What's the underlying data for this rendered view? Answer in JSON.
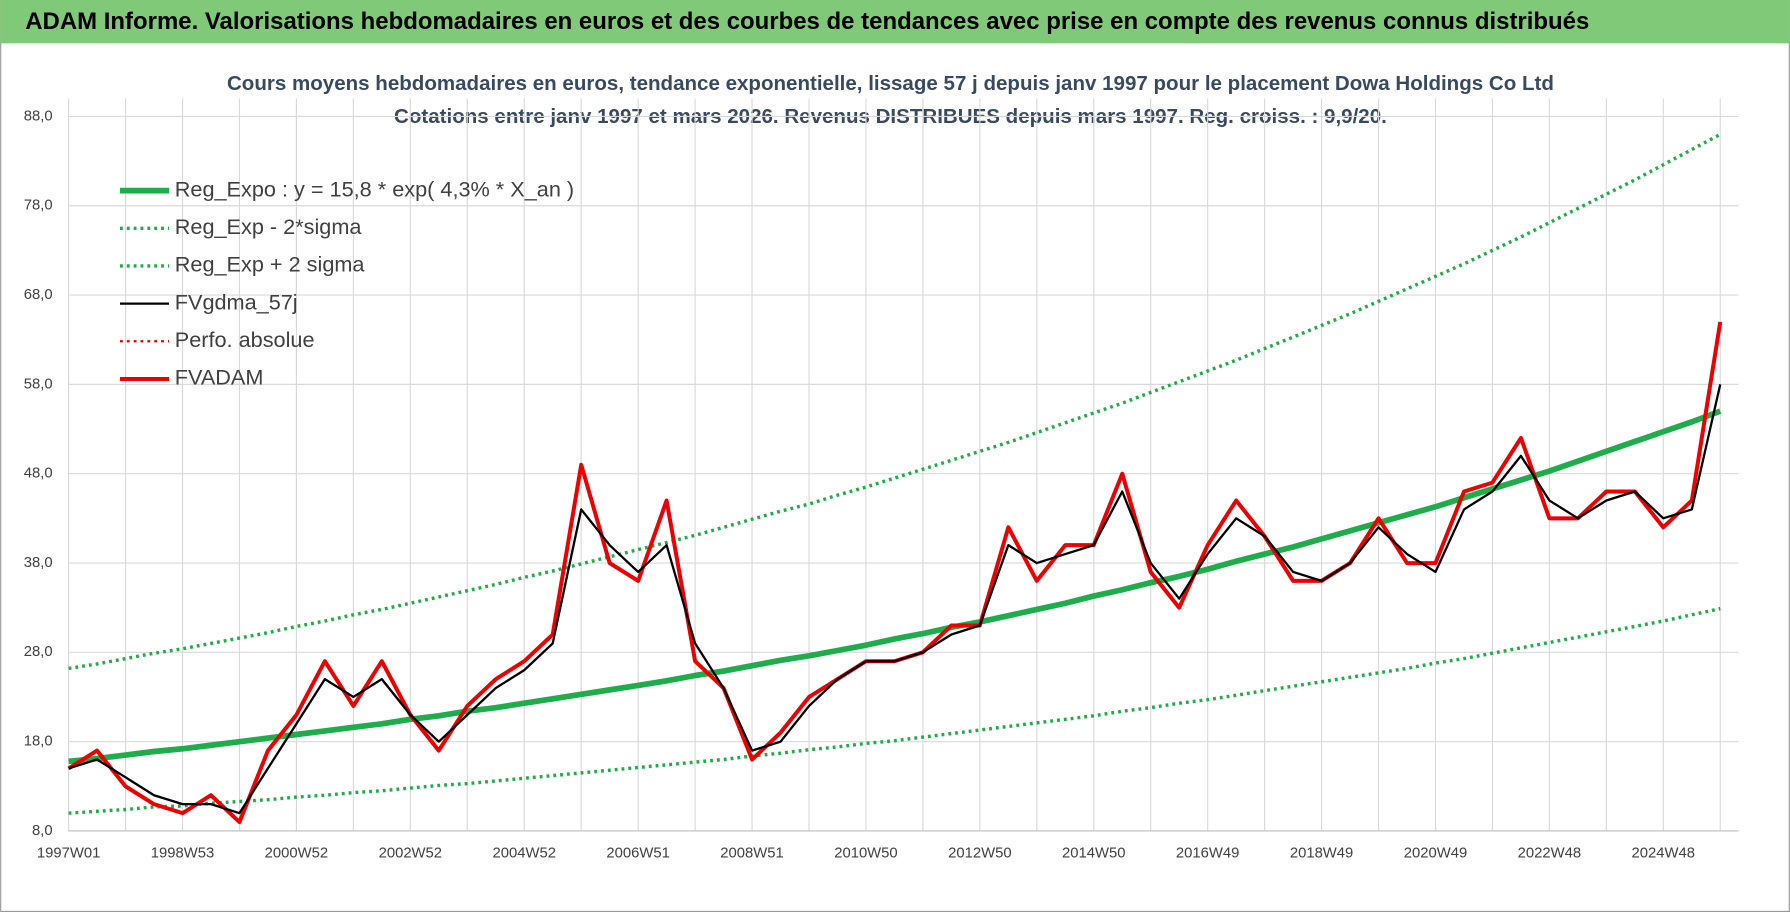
{
  "header": {
    "title": "ADAM Informe. Valorisations hebdomadaires en euros et des courbes de tendances avec prise en compte des revenus connus distribués"
  },
  "chart_data": {
    "type": "line",
    "title": "Cours moyens hebdomadaires en euros, tendance exponentielle, lissage 57 j depuis janv 1997  pour le placement Dowa Holdings Co Ltd",
    "subtitle": "Cotations entre janv 1997 et mars 2026. Revenus DISTRIBUES depuis mars 1997.  Reg. croiss. : 9,9/20.",
    "categories": [
      "1997W01",
      null,
      null,
      null,
      "1998W53",
      null,
      null,
      null,
      "2000W52",
      null,
      null,
      null,
      "2002W52",
      null,
      null,
      null,
      "2004W52",
      null,
      null,
      null,
      "2006W51",
      null,
      null,
      null,
      "2008W51",
      null,
      null,
      null,
      "2010W50",
      null,
      null,
      null,
      "2012W50",
      null,
      null,
      null,
      "2014W50",
      null,
      null,
      null,
      "2016W49",
      null,
      null,
      null,
      "2018W49",
      null,
      null,
      null,
      "2020W49",
      null,
      null,
      null,
      "2022W48",
      null,
      null,
      null,
      "2024W48",
      null,
      null
    ],
    "ylim": [
      8,
      90
    ],
    "yticks": [
      {
        "value": 8,
        "label": "8,0"
      },
      {
        "value": 18,
        "label": "18,0"
      },
      {
        "value": 28,
        "label": "28,0"
      },
      {
        "value": 38,
        "label": "38,0"
      },
      {
        "value": 48,
        "label": "48,0"
      },
      {
        "value": 58,
        "label": "58,0"
      },
      {
        "value": 68,
        "label": "68,0"
      },
      {
        "value": 78,
        "label": "78,0"
      },
      {
        "value": 88,
        "label": "88,0"
      }
    ],
    "grid": true,
    "legend": "top-left",
    "series": [
      {
        "name": "Reg_Expo : y = 15,8 * exp( 4,3% *  X_an )",
        "color": "#1fad4b",
        "line_style": "solid",
        "values": [
          15.8,
          16.1,
          16.5,
          16.9,
          17.2,
          17.6,
          18.0,
          18.4,
          18.8,
          19.2,
          19.6,
          20.0,
          20.5,
          20.9,
          21.4,
          21.8,
          22.3,
          22.8,
          23.3,
          23.8,
          24.3,
          24.8,
          25.4,
          25.9,
          26.5,
          27.1,
          27.6,
          28.2,
          28.8,
          29.5,
          30.1,
          30.8,
          31.4,
          32.1,
          32.8,
          33.5,
          34.3,
          35.0,
          35.8,
          36.5,
          37.3,
          38.2,
          39.0,
          39.8,
          40.7,
          41.6,
          42.5,
          43.4,
          44.3,
          45.3,
          46.3,
          47.3,
          48.3,
          49.4,
          50.5,
          51.6,
          52.7,
          53.8,
          55.0
        ]
      },
      {
        "name": "Reg_Exp - 2*sigma",
        "color": "#1fad4b",
        "line_style": "dotted",
        "values": [
          10.0,
          10.2,
          10.4,
          10.7,
          10.8,
          11.1,
          11.3,
          11.5,
          11.8,
          12.0,
          12.3,
          12.5,
          12.8,
          13.1,
          13.3,
          13.6,
          13.9,
          14.2,
          14.5,
          14.8,
          15.1,
          15.4,
          15.7,
          16.0,
          16.4,
          16.7,
          17.1,
          17.4,
          17.8,
          18.1,
          18.5,
          18.9,
          19.3,
          19.7,
          20.1,
          20.5,
          20.9,
          21.4,
          21.8,
          22.3,
          22.7,
          23.2,
          23.7,
          24.2,
          24.7,
          25.2,
          25.7,
          26.2,
          26.8,
          27.3,
          27.9,
          28.5,
          29.1,
          29.7,
          30.3,
          30.9,
          31.5,
          32.2,
          32.9
        ]
      },
      {
        "name": "Reg_Exp + 2 sigma",
        "color": "#1fad4b",
        "line_style": "dotted",
        "values": [
          26.2,
          26.7,
          27.3,
          27.9,
          28.4,
          29.0,
          29.6,
          30.2,
          30.9,
          31.5,
          32.2,
          32.8,
          33.5,
          34.2,
          34.9,
          35.6,
          36.4,
          37.1,
          37.9,
          38.7,
          39.5,
          40.3,
          41.1,
          42.0,
          42.9,
          43.8,
          44.6,
          45.6,
          46.5,
          47.5,
          48.5,
          49.5,
          50.5,
          51.5,
          52.6,
          53.7,
          54.8,
          55.9,
          57.1,
          58.3,
          59.5,
          60.7,
          62.0,
          63.3,
          64.6,
          65.9,
          67.3,
          68.7,
          70.1,
          71.5,
          73.0,
          74.5,
          76.1,
          77.7,
          79.3,
          80.9,
          82.6,
          84.3,
          86.0
        ]
      },
      {
        "name": "FVgdma_57j",
        "color": "#000000",
        "line_style": "solid",
        "values": [
          15,
          16,
          14,
          12,
          11,
          11,
          10,
          15,
          20,
          25,
          23,
          25,
          21,
          18,
          21,
          24,
          26,
          29,
          44,
          40,
          37,
          40,
          29,
          24,
          17,
          18,
          22,
          25,
          27,
          27,
          28,
          30,
          31,
          40,
          38,
          39,
          40,
          46,
          38,
          34,
          39,
          43,
          41,
          37,
          36,
          38,
          42,
          39,
          37,
          44,
          46,
          50,
          45,
          43,
          45,
          46,
          43,
          44,
          58
        ]
      },
      {
        "name": "Perfo. absolue",
        "color": "#e00000",
        "line_style": "dotted",
        "values": [
          null,
          null,
          null,
          null,
          null,
          null,
          null,
          null,
          null,
          null,
          null,
          null,
          null,
          null,
          null,
          null,
          null,
          null,
          null,
          null,
          null,
          null,
          null,
          null,
          null,
          null,
          null,
          null,
          null,
          null,
          null,
          null,
          null,
          null,
          null,
          null,
          null,
          null,
          null,
          null,
          null,
          null,
          null,
          null,
          null,
          null,
          null,
          null,
          null,
          null,
          null,
          null,
          null,
          null,
          null,
          null,
          null,
          null,
          null
        ]
      },
      {
        "name": "FVADAM",
        "color": "#ee0000",
        "line_style": "solid",
        "values": [
          15,
          17,
          13,
          11,
          10,
          12,
          9,
          17,
          21,
          27,
          22,
          27,
          21,
          17,
          22,
          25,
          27,
          30,
          49,
          38,
          36,
          45,
          27,
          24,
          16,
          19,
          23,
          25,
          27,
          27,
          28,
          31,
          31,
          42,
          36,
          40,
          40,
          48,
          37,
          33,
          40,
          45,
          41,
          36,
          36,
          38,
          43,
          38,
          38,
          46,
          47,
          52,
          43,
          43,
          46,
          46,
          42,
          45,
          65
        ]
      }
    ]
  }
}
